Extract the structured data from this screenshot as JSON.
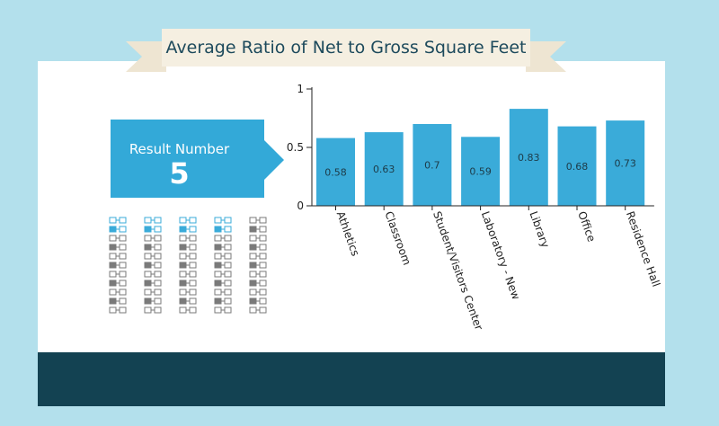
{
  "title": "Average Ratio of Net to Gross Square Feet",
  "result": {
    "label": "Result Number",
    "value": "5"
  },
  "colors": {
    "bar": "#3aabd9",
    "accent": "#33a9d8",
    "banner": "#f5efe1",
    "banner_text": "#1d4a5c",
    "background": "#b3e0ec",
    "footer": "#134252",
    "icon_highlight": "#3aabd9",
    "icon_gray": "#7a7a7a"
  },
  "icon_columns_highlighted": [
    true,
    true,
    true,
    true,
    false
  ],
  "chart_data": {
    "type": "bar",
    "categories": [
      "Athletics",
      "Classroom",
      "Student/Visitors Center",
      "Laboratory - New",
      "Library",
      "Office",
      "Residence Hall"
    ],
    "values": [
      0.58,
      0.63,
      0.7,
      0.59,
      0.83,
      0.68,
      0.73
    ],
    "value_labels": [
      "0.58",
      "0.63",
      "0.7",
      "0.59",
      "0.83",
      "0.68",
      "0.73"
    ],
    "yticks": [
      "0",
      "0.5",
      "1"
    ],
    "ylim": [
      0,
      1
    ],
    "grid": false,
    "legend": "none"
  }
}
